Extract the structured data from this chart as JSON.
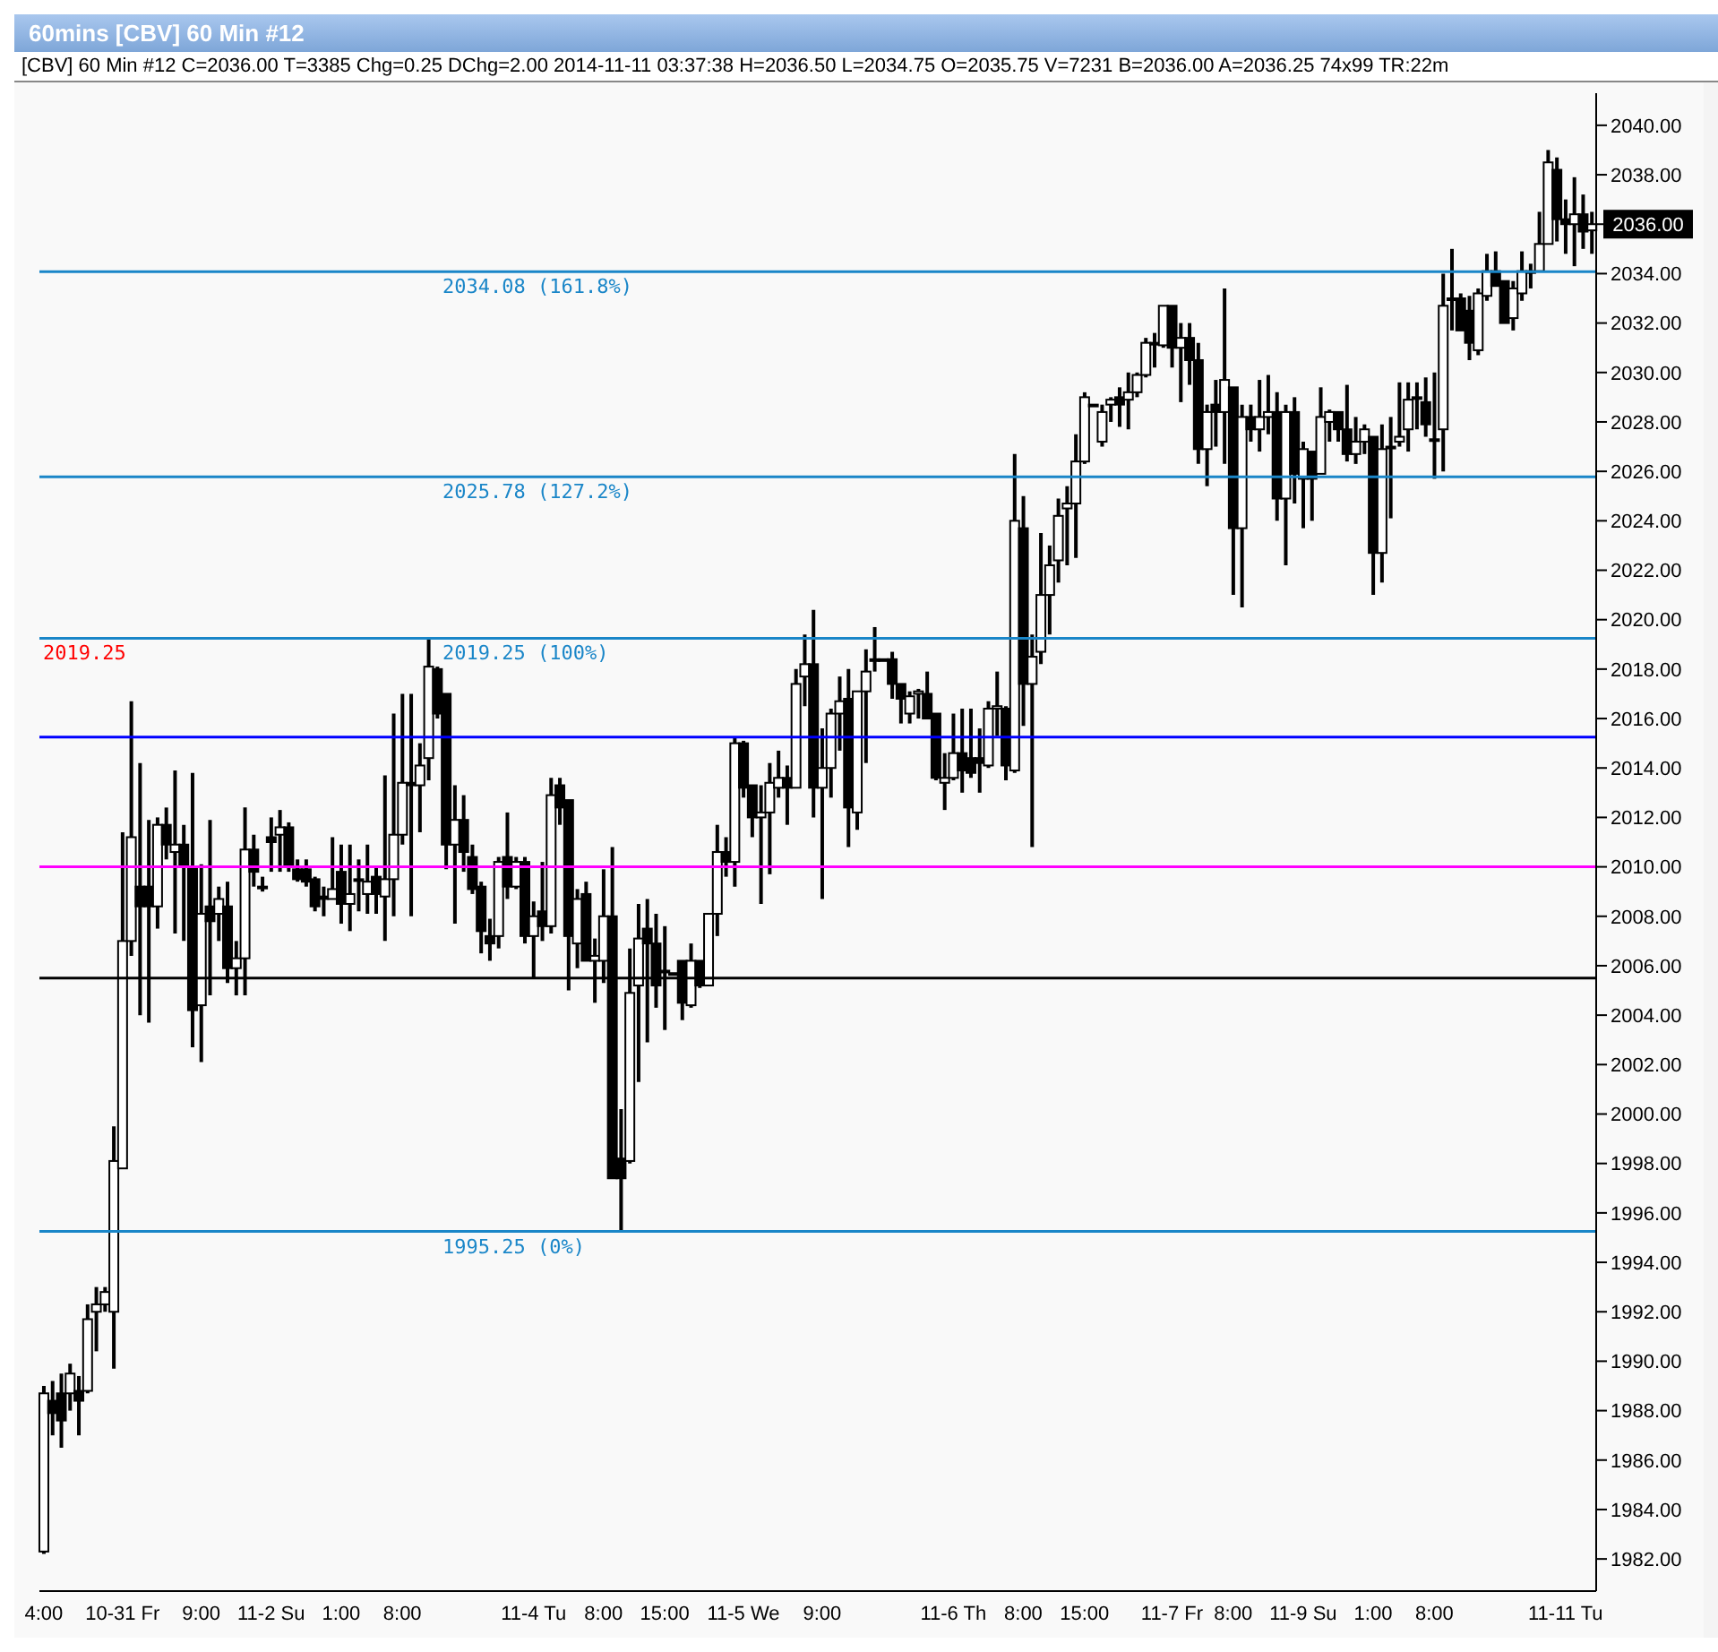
{
  "chart_data": {
    "type": "candlestick",
    "title": "60mins [CBV] 60 Min #12",
    "subtitle": "[CBV]  60 Min  #12 C=2036.00 T=3385 Chg=0.25 DChg=2.00 2014-11-11 03:37:38 H=2036.50 L=2034.75 O=2035.75 V=7231 B=2036.00 A=2036.25 74x99 TR:22m",
    "color": "#000000",
    "categories": [
      "4:00",
      null,
      null,
      null,
      null,
      null,
      null,
      null,
      null,
      "10-31 Fr",
      null,
      null,
      null,
      null,
      null,
      null,
      null,
      null,
      "9:00",
      null,
      null,
      null,
      null,
      null,
      null,
      null,
      "11-2 Su",
      null,
      null,
      null,
      null,
      null,
      null,
      null,
      "1:00",
      null,
      null,
      null,
      null,
      null,
      null,
      "8:00",
      null,
      null,
      null,
      null,
      null,
      null,
      null,
      null,
      null,
      null,
      null,
      null,
      null,
      null,
      "11-4 Tu",
      null,
      null,
      null,
      null,
      null,
      null,
      null,
      "8:00",
      null,
      null,
      null,
      null,
      null,
      null,
      "15:00",
      null,
      null,
      null,
      null,
      null,
      null,
      null,
      null,
      "11-5 We",
      null,
      null,
      null,
      null,
      null,
      null,
      null,
      null,
      "9:00",
      null,
      null,
      null,
      null,
      null,
      null,
      null,
      null,
      null,
      null,
      null,
      null,
      null,
      null,
      "11-6 Th",
      null,
      null,
      null,
      null,
      null,
      null,
      null,
      "8:00",
      null,
      null,
      null,
      null,
      null,
      null,
      "15:00",
      null,
      null,
      null,
      null,
      null,
      null,
      null,
      null,
      null,
      "11-7 Fr",
      null,
      null,
      null,
      null,
      null,
      null,
      "8:00",
      null,
      null,
      null,
      null,
      null,
      null,
      null,
      "11-9 Su",
      null,
      null,
      null,
      null,
      null,
      null,
      null,
      "1:00",
      null,
      null,
      null,
      null,
      null,
      null,
      "8:00",
      null,
      null,
      null,
      null,
      null,
      null,
      null,
      null,
      null,
      null,
      null,
      null,
      null,
      null,
      "11-11 Tu",
      null,
      null,
      null
    ],
    "ohlc": [
      [
        1982.3,
        1989,
        1982.2,
        1988.7
      ],
      [
        1988.4,
        1989.2,
        1987,
        1987.9
      ],
      [
        1988.7,
        1989.5,
        1986.5,
        1987.6
      ],
      [
        1988.7,
        1989.9,
        1988,
        1989.5
      ],
      [
        1988.8,
        1989.4,
        1987,
        1988.4
      ],
      [
        1988.8,
        1992.3,
        1988.7,
        1991.7
      ],
      [
        1992,
        1993,
        1990.4,
        1992.3
      ],
      [
        1992.3,
        1993,
        1992,
        1992.8
      ],
      [
        1992,
        1999.5,
        1989.7,
        1998.1
      ],
      [
        1997.8,
        2011.4,
        1997.8,
        2007
      ],
      [
        2007,
        2016.7,
        2006.4,
        2011.2
      ],
      [
        2009.2,
        2014.2,
        2004,
        2008.4
      ],
      [
        2009.2,
        2011.9,
        2003.7,
        2008.4
      ],
      [
        2008.4,
        2012,
        2007.5,
        2011.7
      ],
      [
        2011.7,
        2012.4,
        2010.3,
        2010.9
      ],
      [
        2010.6,
        2013.9,
        2007.3,
        2010.9
      ],
      [
        2010.9,
        2011.7,
        2007,
        2010
      ],
      [
        2010,
        2013.8,
        2002.7,
        2004.2
      ],
      [
        2004.4,
        2010.1,
        2002.1,
        2008.1
      ],
      [
        2008.4,
        2011.9,
        2004.8,
        2007.8
      ],
      [
        2008.1,
        2009.2,
        2007,
        2008.7
      ],
      [
        2008.4,
        2009.4,
        2005.3,
        2005.9
      ],
      [
        2005.9,
        2007,
        2004.8,
        2006.3
      ],
      [
        2006.3,
        2012.4,
        2004.8,
        2010.7
      ],
      [
        2010.7,
        2011.3,
        2009.2,
        2009.8
      ],
      [
        2009.2,
        2009.6,
        2009,
        2009.2
      ],
      [
        2011.2,
        2012,
        2009.8,
        2011
      ],
      [
        2011.3,
        2012.3,
        2009.8,
        2011.6
      ],
      [
        2011.6,
        2011.8,
        2009.8,
        2010
      ],
      [
        2009.9,
        2010.3,
        2009.4,
        2009.5
      ],
      [
        2009.9,
        2010.3,
        2009.2,
        2009.4
      ],
      [
        2009.5,
        2009.6,
        2008.2,
        2008.4
      ],
      [
        2008.8,
        2009.2,
        2008,
        2008.7
      ],
      [
        2008.7,
        2011.2,
        2008.7,
        2009.1
      ],
      [
        2009.8,
        2010.9,
        2007.7,
        2008.5
      ],
      [
        2008.5,
        2010.9,
        2007.4,
        2008.9
      ],
      [
        2009.5,
        2010.3,
        2008.2,
        2009.5
      ],
      [
        2008.9,
        2010.9,
        2008.1,
        2009.4
      ],
      [
        2009.6,
        2010,
        2008.1,
        2008.9
      ],
      [
        2008.8,
        2013.7,
        2007,
        2009.5
      ],
      [
        2009.5,
        2016.2,
        2008,
        2011.3
      ],
      [
        2011.3,
        2017,
        2010.9,
        2013.4
      ],
      [
        2013.4,
        2017,
        2008,
        2013.3
      ],
      [
        2013.3,
        2015,
        2011.4,
        2014.1
      ],
      [
        2014.4,
        2019.25,
        2013.5,
        2018.1
      ],
      [
        2018,
        2018.1,
        2016,
        2016.2
      ],
      [
        2017,
        2017,
        2009.9,
        2010.9
      ],
      [
        2010.9,
        2013.3,
        2007.7,
        2011.9
      ],
      [
        2011.9,
        2012.9,
        2009.8,
        2010.6
      ],
      [
        2010.4,
        2010.9,
        2008.9,
        2009.1
      ],
      [
        2009.2,
        2009.4,
        2006.5,
        2007.4
      ],
      [
        2007.2,
        2007.9,
        2006.2,
        2006.9
      ],
      [
        2007.2,
        2010.4,
        2006.7,
        2010.2
      ],
      [
        2010.4,
        2012.2,
        2008.7,
        2009.2
      ],
      [
        2009.2,
        2010.4,
        2009.1,
        2010.2
      ],
      [
        2010.2,
        2010.4,
        2006.9,
        2007.2
      ],
      [
        2007.2,
        2008.6,
        2005.5,
        2008
      ],
      [
        2008.2,
        2010.2,
        2007,
        2007.6
      ],
      [
        2007.6,
        2013.6,
        2007.3,
        2012.9
      ],
      [
        2013.3,
        2013.6,
        2011.7,
        2012.4
      ],
      [
        2012.7,
        2012.7,
        2005,
        2007.2
      ],
      [
        2006.9,
        2009.1,
        2005.9,
        2008.7
      ],
      [
        2008.9,
        2009.4,
        2006.2,
        2006.2
      ],
      [
        2006.2,
        2007.1,
        2004.5,
        2006.4
      ],
      [
        2006.2,
        2009.9,
        2005.3,
        2008
      ],
      [
        2008,
        2010.8,
        1997.4,
        1997.4
      ],
      [
        1998.2,
        2000.2,
        1995.25,
        1997.4
      ],
      [
        1998.1,
        2006.7,
        1998,
        2004.9
      ],
      [
        2005.2,
        2008.5,
        2001.3,
        2007.1
      ],
      [
        2007.5,
        2008.7,
        2002.9,
        2006.9
      ],
      [
        2006.9,
        2008.1,
        2004.3,
        2005.2
      ],
      [
        2005.8,
        2007.6,
        2003.4,
        2005.8
      ],
      [
        2005.7,
        2005.7,
        2005.7,
        2005.7
      ],
      [
        2006.2,
        2006.2,
        2003.8,
        2004.5
      ],
      [
        2004.4,
        2006.9,
        2004.3,
        2006.2
      ],
      [
        2006.2,
        2006.2,
        2005.1,
        2005.2
      ],
      [
        2005.2,
        2008.1,
        2005.2,
        2008.1
      ],
      [
        2008.1,
        2011.7,
        2007.2,
        2010.6
      ],
      [
        2010.6,
        2011.2,
        2009.6,
        2010.2
      ],
      [
        2010.2,
        2015.2,
        2009.2,
        2015
      ],
      [
        2015,
        2015.1,
        2012.8,
        2013.2
      ],
      [
        2013.3,
        2013.3,
        2011.2,
        2012
      ],
      [
        2012,
        2013.3,
        2008.5,
        2012.2
      ],
      [
        2012.2,
        2014.2,
        2009.7,
        2013.4
      ],
      [
        2013.2,
        2014.7,
        2012.8,
        2013.6
      ],
      [
        2013.6,
        2014.1,
        2011.7,
        2013.2
      ],
      [
        2013.2,
        2018,
        2013.2,
        2017.4
      ],
      [
        2017.7,
        2019.4,
        2016.5,
        2018.2
      ],
      [
        2018.2,
        2020.4,
        2012,
        2013.2
      ],
      [
        2013.2,
        2015.6,
        2008.7,
        2014
      ],
      [
        2014,
        2016.4,
        2012.8,
        2016.2
      ],
      [
        2016.2,
        2017.7,
        2014.7,
        2016.7
      ],
      [
        2016.8,
        2018,
        2010.8,
        2012.4
      ],
      [
        2012.2,
        2017.1,
        2011.5,
        2017.1
      ],
      [
        2017.1,
        2018.8,
        2014.2,
        2017.9
      ],
      [
        2018.4,
        2019.7,
        2017.9,
        2018.4
      ],
      [
        2018.4,
        2018.4,
        2018.4,
        2018.4
      ],
      [
        2018.4,
        2018.7,
        2016.8,
        2017.4
      ],
      [
        2017.4,
        2017.4,
        2015.8,
        2016.8
      ],
      [
        2016.2,
        2017.1,
        2015.8,
        2016.9
      ],
      [
        2017,
        2017.2,
        2016,
        2017.1
      ],
      [
        2017,
        2017.9,
        2016,
        2016
      ],
      [
        2016.2,
        2016.2,
        2013.5,
        2013.6
      ],
      [
        2013.4,
        2014.6,
        2012.3,
        2013.6
      ],
      [
        2013.6,
        2016.2,
        2013.5,
        2014.6
      ],
      [
        2014.6,
        2016.4,
        2013,
        2013.9
      ],
      [
        2014.4,
        2016.4,
        2013.6,
        2013.8
      ],
      [
        2014.4,
        2015.6,
        2013,
        2014.2
      ],
      [
        2014.1,
        2016.7,
        2014,
        2016.4
      ],
      [
        2016.4,
        2017.9,
        2015.3,
        2016.5
      ],
      [
        2016.4,
        2016.5,
        2013.5,
        2014.1
      ],
      [
        2013.9,
        2026.7,
        2013.8,
        2024
      ],
      [
        2023.7,
        2025,
        2015.7,
        2017.4
      ],
      [
        2017.4,
        2019.4,
        2010.8,
        2018.5
      ],
      [
        2018.7,
        2023.5,
        2018.2,
        2021
      ],
      [
        2021,
        2023,
        2019.4,
        2022.2
      ],
      [
        2022.4,
        2024.9,
        2021.5,
        2024.2
      ],
      [
        2024.5,
        2025.4,
        2022.2,
        2024.7
      ],
      [
        2024.7,
        2027.5,
        2022.5,
        2026.4
      ],
      [
        2026.4,
        2029.2,
        2026.3,
        2029
      ],
      [
        2028.7,
        2028.7,
        2028.7,
        2028.7
      ],
      [
        2027.2,
        2028.7,
        2027,
        2028.4
      ],
      [
        2028.7,
        2029,
        2028,
        2028.9
      ],
      [
        2029,
        2029.4,
        2027.8,
        2028.7
      ],
      [
        2028.9,
        2030,
        2027.7,
        2029.2
      ],
      [
        2029.2,
        2030,
        2029,
        2029.9
      ],
      [
        2029.9,
        2031.4,
        2029.8,
        2031.2
      ],
      [
        2031.2,
        2031.6,
        2030.2,
        2031.2
      ],
      [
        2031.1,
        2032.7,
        2031,
        2032.7
      ],
      [
        2032.7,
        2032.7,
        2030.2,
        2031
      ],
      [
        2031,
        2032,
        2028.8,
        2031.4
      ],
      [
        2031.4,
        2032,
        2029.5,
        2030.5
      ],
      [
        2030.5,
        2031.2,
        2026.3,
        2026.9
      ],
      [
        2026.9,
        2028.7,
        2025.4,
        2028.4
      ],
      [
        2028.7,
        2029.7,
        2027,
        2028.4
      ],
      [
        2028.4,
        2033.4,
        2026.3,
        2029.7
      ],
      [
        2029.4,
        2029.4,
        2021,
        2023.7
      ],
      [
        2023.7,
        2028.7,
        2020.5,
        2028.2
      ],
      [
        2028.2,
        2028.7,
        2027.2,
        2027.7
      ],
      [
        2027.7,
        2029.7,
        2026.8,
        2028.2
      ],
      [
        2028.2,
        2029.9,
        2027.5,
        2028.4
      ],
      [
        2028.4,
        2029.2,
        2024,
        2024.9
      ],
      [
        2024.9,
        2028.7,
        2022.2,
        2028.4
      ],
      [
        2028.4,
        2029,
        2024.7,
        2025.9
      ],
      [
        2025.7,
        2027.2,
        2023.7,
        2026.9
      ],
      [
        2026.8,
        2026.8,
        2024,
        2025.7
      ],
      [
        2025.9,
        2029.4,
        2025.9,
        2028.2
      ],
      [
        2028,
        2028.5,
        2027.2,
        2028.4
      ],
      [
        2028.4,
        2028.4,
        2027.2,
        2027.7
      ],
      [
        2027.7,
        2029.5,
        2026.4,
        2026.7
      ],
      [
        2026.7,
        2028.2,
        2026.3,
        2027.2
      ],
      [
        2027.2,
        2027.9,
        2026.7,
        2027.7
      ],
      [
        2027.4,
        2027.4,
        2021,
        2022.7
      ],
      [
        2022.7,
        2027.9,
        2021.5,
        2026.9
      ],
      [
        2027,
        2028.2,
        2024.1,
        2027
      ],
      [
        2027.2,
        2029.6,
        2027,
        2027.4
      ],
      [
        2027.7,
        2029.6,
        2026.8,
        2028.9
      ],
      [
        2029,
        2029.6,
        2027.7,
        2029
      ],
      [
        2028.8,
        2029.8,
        2027.4,
        2027.9
      ],
      [
        2027.3,
        2030,
        2025.7,
        2027.3
      ],
      [
        2027.7,
        2034,
        2026,
        2032.7
      ],
      [
        2033,
        2035,
        2031.7,
        2033
      ],
      [
        2033,
        2033.2,
        2031.7,
        2031.7
      ],
      [
        2032.5,
        2033.1,
        2030.5,
        2031.2
      ],
      [
        2030.9,
        2033.4,
        2030.7,
        2033.2
      ],
      [
        2033.1,
        2034.8,
        2032.9,
        2034.1
      ],
      [
        2034.1,
        2034.9,
        2033.5,
        2033.5
      ],
      [
        2033.7,
        2033.7,
        2032,
        2032
      ],
      [
        2032.2,
        2033.7,
        2031.7,
        2033.4
      ],
      [
        2033.2,
        2034.9,
        2032.9,
        2034.1
      ],
      [
        2034.1,
        2034.4,
        2033.4,
        2034.1
      ],
      [
        2034.1,
        2036.5,
        2034.1,
        2035.2
      ],
      [
        2035.2,
        2039,
        2035.2,
        2038.5
      ],
      [
        2038.2,
        2038.7,
        2035.3,
        2036.2
      ],
      [
        2036.2,
        2037,
        2034.8,
        2036
      ],
      [
        2036,
        2037.9,
        2034.3,
        2036.4
      ],
      [
        2036.4,
        2037.2,
        2035,
        2035.7
      ],
      [
        2035.75,
        2036.5,
        2034.8,
        2036
      ]
    ],
    "ylim": [
      1980.7,
      2041.3
    ],
    "yticks": [
      {
        "value": 1982,
        "label": "1982.00"
      },
      {
        "value": 1984,
        "label": "1984.00"
      },
      {
        "value": 1986,
        "label": "1986.00"
      },
      {
        "value": 1988,
        "label": "1988.00"
      },
      {
        "value": 1990,
        "label": "1990.00"
      },
      {
        "value": 1992,
        "label": "1992.00"
      },
      {
        "value": 1994,
        "label": "1994.00"
      },
      {
        "value": 1996,
        "label": "1996.00"
      },
      {
        "value": 1998,
        "label": "1998.00"
      },
      {
        "value": 2000,
        "label": "2000.00"
      },
      {
        "value": 2002,
        "label": "2002.00"
      },
      {
        "value": 2004,
        "label": "2004.00"
      },
      {
        "value": 2006,
        "label": "2006.00"
      },
      {
        "value": 2008,
        "label": "2008.00"
      },
      {
        "value": 2010,
        "label": "2010.00"
      },
      {
        "value": 2012,
        "label": "2012.00"
      },
      {
        "value": 2014,
        "label": "2014.00"
      },
      {
        "value": 2016,
        "label": "2016.00"
      },
      {
        "value": 2018,
        "label": "2018.00"
      },
      {
        "value": 2020,
        "label": "2020.00"
      },
      {
        "value": 2022,
        "label": "2022.00"
      },
      {
        "value": 2024,
        "label": "2024.00"
      },
      {
        "value": 2026,
        "label": "2026.00"
      },
      {
        "value": 2028,
        "label": "2028.00"
      },
      {
        "value": 2030,
        "label": "2030.00"
      },
      {
        "value": 2032,
        "label": "2032.00"
      },
      {
        "value": 2034,
        "label": "2034.00"
      },
      {
        "value": 2036,
        "label": null
      },
      {
        "value": 2038,
        "label": "2038.00"
      },
      {
        "value": 2040,
        "label": "2040.00"
      }
    ],
    "ref_lines": [
      {
        "axis": "y",
        "value": 2034.08,
        "label": "2034.08  (161.8%)",
        "color": "#1a86c8"
      },
      {
        "axis": "y",
        "value": 2025.78,
        "label": "2025.78  (127.2%)",
        "color": "#1a86c8"
      },
      {
        "axis": "y",
        "value": 2019.25,
        "label": "2019.25  (100%)",
        "color": "#1a86c8"
      },
      {
        "axis": "y",
        "value": 1995.25,
        "label": "1995.25  (0%)",
        "color": "#1a86c8"
      },
      {
        "axis": "y",
        "value": 2015.25,
        "color": "#0000ff"
      },
      {
        "axis": "y",
        "value": 2010,
        "color": "#ff00ff"
      },
      {
        "axis": "y",
        "value": 2005.5,
        "color": "#000000"
      }
    ],
    "annotations": [
      {
        "text": "2019.25",
        "y": 2019.25
      },
      "2036.00"
    ],
    "grid": false,
    "legend": false
  }
}
